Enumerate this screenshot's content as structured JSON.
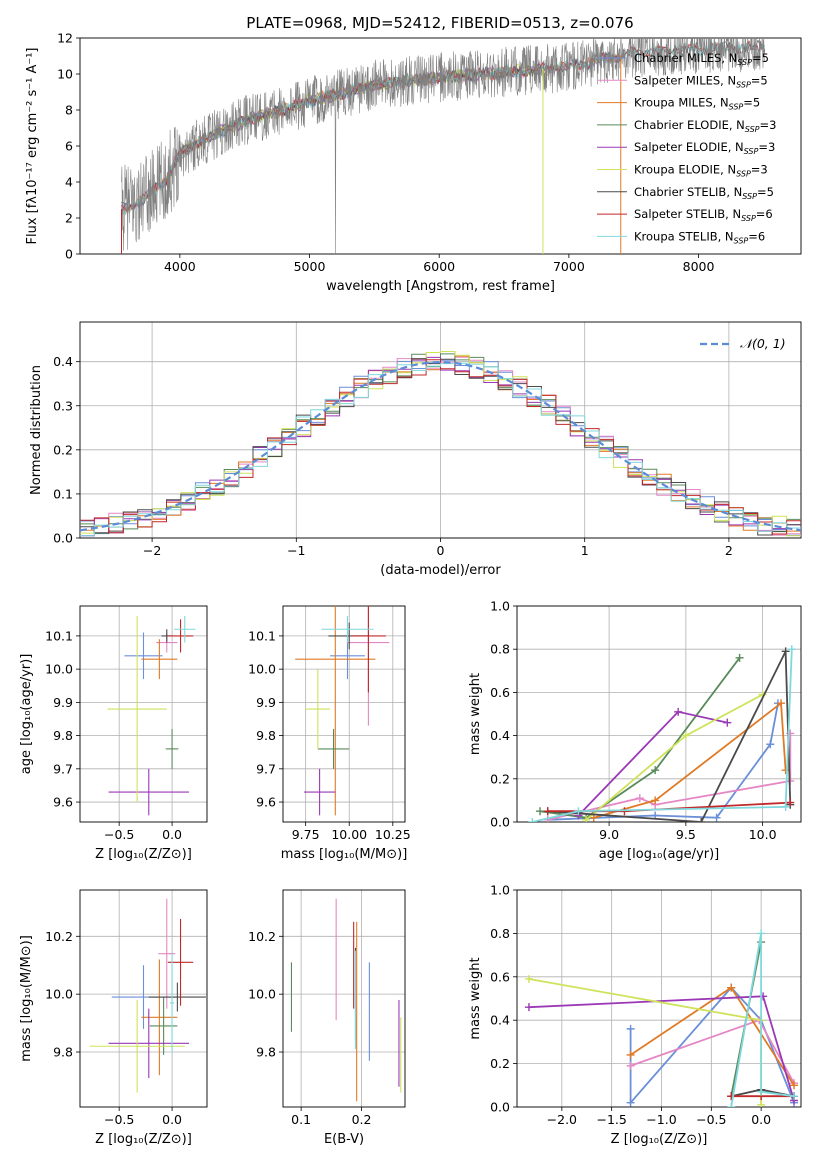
{
  "figure": {
    "title": "PLATE=0968, MJD=52412, FIBERID=0513, z=0.076"
  },
  "colors": {
    "Chabrier MILES": "#6b8fd8",
    "Salpeter MILES": "#e587c5",
    "Kroupa MILES": "#e07a25",
    "Chabrier ELODIE": "#5a8a5a",
    "Salpeter ELODIE": "#9a38b5",
    "Kroupa ELODIE": "#cfe25a",
    "Chabrier STELIB": "#4a4a4a",
    "Salpeter STELIB": "#c0282a",
    "Kroupa STELIB": "#7fd8dc",
    "data": "#808080",
    "normal": "#5b8cd6",
    "grid": "#b0b0b0"
  },
  "chart_data": [
    {
      "id": "spectrum",
      "type": "line",
      "title": "PLATE=0968, MJD=52412, FIBERID=0513, z=0.076",
      "xlabel": "wavelength [Angstrom, rest frame]",
      "ylabel": "Flux [fλ10⁻¹⁷ erg cm⁻² s⁻¹ A⁻¹]",
      "xlim": [
        3230,
        8790
      ],
      "ylim": [
        0,
        12
      ],
      "xticks": [
        4000,
        5000,
        6000,
        7000,
        8000
      ],
      "yticks": [
        0,
        2,
        4,
        6,
        8,
        10,
        12
      ],
      "grid": false,
      "legend_position": "right",
      "spectrum_range": [
        3550,
        8510
      ],
      "continuum_points": [
        [
          3550,
          2.5
        ],
        [
          3700,
          2.9
        ],
        [
          3900,
          4.2
        ],
        [
          4000,
          5.6
        ],
        [
          4200,
          6.4
        ],
        [
          4500,
          7.4
        ],
        [
          4800,
          8.0
        ],
        [
          5000,
          8.5
        ],
        [
          5500,
          9.4
        ],
        [
          6000,
          9.8
        ],
        [
          6500,
          10.1
        ],
        [
          7000,
          10.4
        ],
        [
          7500,
          11.2
        ],
        [
          8000,
          11.4
        ],
        [
          8500,
          11.5
        ]
      ],
      "series": [
        {
          "name": "Chabrier MILES, N_SSP=5",
          "label_main": "Chabrier MILES, N",
          "label_sub": "SSP",
          "label_tail": "=5",
          "key": "Chabrier MILES",
          "range": [
            3550,
            7400
          ]
        },
        {
          "name": "Salpeter MILES, N_SSP=5",
          "label_main": "Salpeter MILES, N",
          "label_sub": "SSP",
          "label_tail": "=5",
          "key": "Salpeter MILES",
          "range": [
            3550,
            7400
          ]
        },
        {
          "name": "Kroupa MILES, N_SSP=5",
          "label_main": "Kroupa MILES, N",
          "label_sub": "SSP",
          "label_tail": "=5",
          "key": "Kroupa MILES",
          "range": [
            3550,
            7400
          ]
        },
        {
          "name": "Chabrier ELODIE, N_SSP=3",
          "label_main": "Chabrier ELODIE, N",
          "label_sub": "SSP",
          "label_tail": "=3",
          "key": "Chabrier ELODIE",
          "range": [
            3900,
            6800
          ]
        },
        {
          "name": "Salpeter ELODIE, N_SSP=3",
          "label_main": "Salpeter ELODIE, N",
          "label_sub": "SSP",
          "label_tail": "=3",
          "key": "Salpeter ELODIE",
          "range": [
            3900,
            6800
          ]
        },
        {
          "name": "Kroupa ELODIE, N_SSP=3",
          "label_main": "Kroupa ELODIE, N",
          "label_sub": "SSP",
          "label_tail": "=3",
          "key": "Kroupa ELODIE",
          "range": [
            3900,
            6800
          ]
        },
        {
          "name": "Chabrier STELIB, N_SSP=5",
          "label_main": "Chabrier STELIB, N",
          "label_sub": "SSP",
          "label_tail": "=5",
          "key": "Chabrier STELIB",
          "range": [
            3550,
            8510
          ]
        },
        {
          "name": "Salpeter STELIB, N_SSP=6",
          "label_main": "Salpeter STELIB, N",
          "label_sub": "SSP",
          "label_tail": "=6",
          "key": "Salpeter STELIB",
          "range": [
            3550,
            8510
          ]
        },
        {
          "name": "Kroupa STELIB, N_SSP=6",
          "label_main": "Kroupa STELIB, N",
          "label_sub": "SSP",
          "label_tail": "=6",
          "key": "Kroupa STELIB",
          "range": [
            3550,
            8510
          ]
        }
      ]
    },
    {
      "id": "residuals",
      "type": "line",
      "xlabel": "(data-model)/error",
      "ylabel": "Normed distribution",
      "xlim": [
        -2.5,
        2.5
      ],
      "ylim": [
        0,
        0.49
      ],
      "xticks": [
        -2,
        -1,
        0,
        1,
        2
      ],
      "xtick_labels": [
        "−2",
        "−1",
        "0",
        "1",
        "2"
      ],
      "yticks": [
        0.0,
        0.1,
        0.2,
        0.3,
        0.4
      ],
      "ytick_labels": [
        "0.0",
        "0.1",
        "0.2",
        "0.3",
        "0.4"
      ],
      "grid": true,
      "legend": "𝒩(0, 1)",
      "legend_position": "top-right",
      "bin_width": 0.1,
      "note": "step histograms of nine fits with a standard normal curve"
    },
    {
      "id": "age_vs_Z",
      "type": "scatter",
      "xlabel": "Z [log₁₀(Z/Z⊙)]",
      "ylabel": "age  [log₁₀(age/yr)]",
      "xlim": [
        -0.87,
        0.33
      ],
      "ylim": [
        9.54,
        10.19
      ],
      "xticks": [
        -0.5,
        0.0
      ],
      "xtick_labels": [
        "−0.5",
        "0.0"
      ],
      "yticks": [
        9.6,
        9.7,
        9.8,
        9.9,
        10.0,
        10.1
      ],
      "ytick_labels": [
        "9.6",
        "9.7",
        "9.8",
        "9.9",
        "10.0",
        "10.1"
      ],
      "grid": true,
      "points": [
        {
          "key": "Chabrier MILES",
          "x": -0.27,
          "xerr": 0.18,
          "y": 10.04,
          "yerr": 0.07
        },
        {
          "key": "Salpeter MILES",
          "x": -0.05,
          "xerr": 0.1,
          "y": 10.08,
          "yerr": 0.03
        },
        {
          "key": "Kroupa MILES",
          "x": -0.12,
          "xerr": 0.17,
          "y": 10.03,
          "yerr": 0.06
        },
        {
          "key": "Chabrier ELODIE",
          "x": 0.0,
          "xerr": 0.06,
          "y": 9.76,
          "yerr": 0.06
        },
        {
          "key": "Salpeter ELODIE",
          "x": -0.22,
          "xerr": 0.38,
          "y": 9.63,
          "yerr": 0.07
        },
        {
          "key": "Kroupa ELODIE",
          "x": -0.33,
          "xerr": 0.28,
          "y": 9.88,
          "yerr": 0.28
        },
        {
          "key": "Chabrier STELIB",
          "x": -0.05,
          "xerr": 0.05,
          "y": 10.1,
          "yerr": 0.02
        },
        {
          "key": "Salpeter STELIB",
          "x": 0.08,
          "xerr": 0.12,
          "y": 10.1,
          "yerr": 0.05
        },
        {
          "key": "Kroupa STELIB",
          "x": 0.12,
          "xerr": 0.1,
          "y": 10.12,
          "yerr": 0.04
        }
      ]
    },
    {
      "id": "age_vs_mass",
      "type": "scatter",
      "xlabel": "mass [log₁₀(M/M⊙)]",
      "ylabel": "",
      "xlim": [
        9.62,
        10.32
      ],
      "ylim": [
        9.54,
        10.19
      ],
      "xticks": [
        9.75,
        10.0,
        10.25
      ],
      "xtick_labels": [
        "9.75",
        "10.00",
        "10.25"
      ],
      "yticks": [
        9.6,
        9.7,
        9.8,
        9.9,
        10.0,
        10.1
      ],
      "ytick_labels": [
        "9.6",
        "9.7",
        "9.8",
        "9.9",
        "10.0",
        "10.1"
      ],
      "grid": true,
      "points": [
        {
          "key": "Chabrier MILES",
          "x": 9.99,
          "xerr": 0.1,
          "y": 10.04,
          "yerr": 0.07
        },
        {
          "key": "Salpeter MILES",
          "x": 10.11,
          "xerr": 0.12,
          "y": 10.08,
          "yerr": 0.25
        },
        {
          "key": "Kroupa MILES",
          "x": 9.92,
          "xerr": 0.23,
          "y": 10.03,
          "yerr": 0.47
        },
        {
          "key": "Chabrier ELODIE",
          "x": 9.91,
          "xerr": 0.09,
          "y": 9.76,
          "yerr": 0.06
        },
        {
          "key": "Salpeter ELODIE",
          "x": 9.83,
          "xerr": 0.09,
          "y": 9.63,
          "yerr": 0.07
        },
        {
          "key": "Kroupa ELODIE",
          "x": 9.82,
          "xerr": 0.07,
          "y": 9.88,
          "yerr": 0.12
        },
        {
          "key": "Chabrier STELIB",
          "x": 10.0,
          "xerr": 0.12,
          "y": 10.1,
          "yerr": 0.04
        },
        {
          "key": "Salpeter STELIB",
          "x": 10.11,
          "xerr": 0.1,
          "y": 10.1,
          "yerr": 0.17
        },
        {
          "key": "Kroupa STELIB",
          "x": 9.99,
          "xerr": 0.15,
          "y": 10.12,
          "yerr": 0.04
        }
      ]
    },
    {
      "id": "weight_vs_age",
      "type": "line",
      "xlabel": "age  [log₁₀(age/yr)]",
      "ylabel": "mass weight",
      "xlim": [
        8.4,
        10.25
      ],
      "ylim": [
        0,
        1.0
      ],
      "xticks": [
        9.0,
        9.5,
        10.0
      ],
      "xtick_labels": [
        "9.0",
        "9.5",
        "10.0"
      ],
      "yticks": [
        0.0,
        0.2,
        0.4,
        0.6,
        0.8,
        1.0
      ],
      "ytick_labels": [
        "0.0",
        "0.2",
        "0.4",
        "0.6",
        "0.8",
        "1.0"
      ],
      "grid": true,
      "series": [
        {
          "key": "Chabrier MILES",
          "x": [
            8.6,
            9.3,
            9.7,
            10.05,
            10.1
          ],
          "y": [
            0.01,
            0.03,
            0.02,
            0.36,
            0.55
          ]
        },
        {
          "key": "Salpeter MILES",
          "x": [
            8.6,
            9.2,
            9.3,
            10.18,
            10.18
          ],
          "y": [
            0.01,
            0.11,
            0.08,
            0.19,
            0.41
          ]
        },
        {
          "key": "Kroupa MILES",
          "x": [
            8.9,
            9.3,
            10.12,
            10.15
          ],
          "y": [
            0.02,
            0.1,
            0.55,
            0.24
          ]
        },
        {
          "key": "Chabrier ELODIE",
          "x": [
            8.55,
            8.85,
            9.3,
            9.85
          ],
          "y": [
            0.05,
            0.02,
            0.24,
            0.76
          ]
        },
        {
          "key": "Salpeter ELODIE",
          "x": [
            8.8,
            9.45,
            9.77
          ],
          "y": [
            0.03,
            0.51,
            0.46
          ]
        },
        {
          "key": "Kroupa ELODIE",
          "x": [
            8.85,
            9.5,
            10.0
          ],
          "y": [
            0.01,
            0.4,
            0.59
          ]
        },
        {
          "key": "Chabrier STELIB",
          "x": [
            8.6,
            9.6,
            10.15,
            10.18
          ],
          "y": [
            0.05,
            0.0,
            0.79,
            0.08
          ]
        },
        {
          "key": "Salpeter STELIB",
          "x": [
            8.6,
            9.1,
            10.18
          ],
          "y": [
            0.05,
            0.05,
            0.09
          ]
        },
        {
          "key": "Kroupa STELIB",
          "x": [
            8.5,
            8.8,
            10.15,
            10.19
          ],
          "y": [
            0.0,
            0.05,
            0.07,
            0.8
          ]
        }
      ]
    },
    {
      "id": "mass_vs_Z",
      "type": "scatter",
      "xlabel": "Z [log₁₀(Z/Z⊙)]",
      "ylabel": "mass [log₁₀(M/M⊙)]",
      "xlim": [
        -0.87,
        0.33
      ],
      "ylim": [
        9.61,
        10.36
      ],
      "xticks": [
        -0.5,
        0.0
      ],
      "xtick_labels": [
        "−0.5",
        "0.0"
      ],
      "yticks": [
        9.8,
        10.0,
        10.2
      ],
      "ytick_labels": [
        "9.8",
        "10.0",
        "10.2"
      ],
      "grid": true,
      "points": [
        {
          "key": "Chabrier MILES",
          "x": -0.27,
          "xerr": 0.3,
          "y": 9.99,
          "yerr": 0.11
        },
        {
          "key": "Salpeter MILES",
          "x": -0.05,
          "xerr": 0.08,
          "y": 10.14,
          "yerr": 0.19
        },
        {
          "key": "Kroupa MILES",
          "x": -0.12,
          "xerr": 0.17,
          "y": 9.92,
          "yerr": 0.2
        },
        {
          "key": "Chabrier ELODIE",
          "x": -0.08,
          "xerr": 0.13,
          "y": 9.89,
          "yerr": 0.1
        },
        {
          "key": "Salpeter ELODIE",
          "x": -0.22,
          "xerr": 0.38,
          "y": 9.83,
          "yerr": 0.12
        },
        {
          "key": "Kroupa ELODIE",
          "x": -0.33,
          "xerr": 0.45,
          "y": 9.82,
          "yerr": 0.16
        },
        {
          "key": "Chabrier STELIB",
          "x": 0.05,
          "xerr": 0.27,
          "y": 9.99,
          "yerr": 0.05
        },
        {
          "key": "Salpeter STELIB",
          "x": 0.08,
          "xerr": 0.12,
          "y": 10.11,
          "yerr": 0.15
        },
        {
          "key": "Kroupa STELIB",
          "x": 0.0,
          "xerr": 0.02,
          "y": 9.97,
          "yerr": 0.17
        }
      ]
    },
    {
      "id": "mass_vs_ebv",
      "type": "scatter",
      "xlabel": "E(B-V)",
      "ylabel": "",
      "xlim": [
        0.07,
        0.272
      ],
      "ylim": [
        9.61,
        10.36
      ],
      "xticks": [
        0.1,
        0.2
      ],
      "xtick_labels": [
        "0.1",
        "0.2"
      ],
      "yticks": [
        9.8,
        10.0,
        10.2
      ],
      "ytick_labels": [
        "9.8",
        "10.0",
        "10.2"
      ],
      "grid": true,
      "points": [
        {
          "key": "Chabrier MILES",
          "x": 0.213,
          "y": 9.94,
          "yerr": 0.17
        },
        {
          "key": "Salpeter MILES",
          "x": 0.158,
          "y": 10.12,
          "yerr": 0.21
        },
        {
          "key": "Kroupa MILES",
          "x": 0.192,
          "y": 9.94,
          "yerr": 0.31
        },
        {
          "key": "Chabrier ELODIE",
          "x": 0.084,
          "y": 9.99,
          "yerr": 0.12
        },
        {
          "key": "Salpeter ELODIE",
          "x": 0.262,
          "y": 9.83,
          "yerr": 0.15
        },
        {
          "key": "Kroupa ELODIE",
          "x": 0.265,
          "y": 9.79,
          "yerr": 0.13
        },
        {
          "key": "Chabrier STELIB",
          "x": 0.19,
          "y": 10.0,
          "yerr": 0.16
        },
        {
          "key": "Salpeter STELIB",
          "x": 0.187,
          "y": 10.1,
          "yerr": 0.15
        },
        {
          "key": "Kroupa STELIB",
          "x": 0.19,
          "y": 9.98,
          "yerr": 0.17
        }
      ]
    },
    {
      "id": "weight_vs_Z",
      "type": "line",
      "xlabel": "Z [log₁₀(Z/Z⊙)]",
      "ylabel": "mass weight",
      "xlim": [
        -2.45,
        0.4
      ],
      "ylim": [
        0,
        1.0
      ],
      "xticks": [
        -2.0,
        -1.5,
        -1.0,
        -0.5,
        0.0
      ],
      "xtick_labels": [
        "−2.0",
        "−1.5",
        "−1.0",
        "−0.5",
        "0.0"
      ],
      "yticks": [
        0.0,
        0.2,
        0.4,
        0.6,
        0.8,
        1.0
      ],
      "ytick_labels": [
        "0.0",
        "0.2",
        "0.4",
        "0.6",
        "0.8",
        "1.0"
      ],
      "grid": true,
      "series": [
        {
          "key": "Chabrier MILES",
          "x": [
            -1.31,
            -1.31,
            -0.3,
            0.0,
            0.33
          ],
          "y": [
            0.36,
            0.02,
            0.55,
            0.4,
            0.02
          ]
        },
        {
          "key": "Salpeter MILES",
          "x": [
            -1.31,
            -0.02,
            0.33
          ],
          "y": [
            0.19,
            0.4,
            0.11
          ]
        },
        {
          "key": "Kroupa MILES",
          "x": [
            -1.31,
            -0.3,
            0.33
          ],
          "y": [
            0.24,
            0.55,
            0.1
          ]
        },
        {
          "key": "Chabrier ELODIE",
          "x": [
            -0.3,
            0.0
          ],
          "y": [
            0.05,
            0.76
          ]
        },
        {
          "key": "Salpeter ELODIE",
          "x": [
            -2.33,
            0.02,
            0.33
          ],
          "y": [
            0.46,
            0.51,
            0.03
          ]
        },
        {
          "key": "Kroupa ELODIE",
          "x": [
            -2.33,
            0.0,
            0.0
          ],
          "y": [
            0.59,
            0.4,
            0.01
          ]
        },
        {
          "key": "Chabrier STELIB",
          "x": [
            -0.3,
            0.0,
            0.33
          ],
          "y": [
            0.05,
            0.08,
            0.05
          ]
        },
        {
          "key": "Salpeter STELIB",
          "x": [
            -0.3,
            0.0,
            0.33
          ],
          "y": [
            0.05,
            0.05,
            0.05
          ]
        },
        {
          "key": "Kroupa STELIB",
          "x": [
            -0.3,
            0.0,
            0.0,
            0.33
          ],
          "y": [
            0.0,
            0.8,
            0.07,
            0.05
          ]
        }
      ]
    }
  ]
}
